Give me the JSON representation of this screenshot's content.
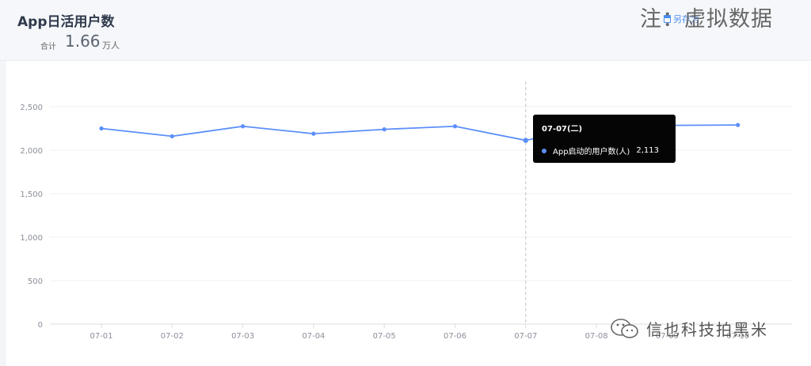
{
  "header": {
    "title": "App日活用户数",
    "total_label": "合计",
    "total_value": "1.66",
    "total_unit": "万人",
    "save_label": "另存为"
  },
  "watermark": {
    "top_text": "注：虚拟数据",
    "bottom_text": "信也科技拍黑米"
  },
  "colors": {
    "series": "#5b8ff9",
    "tooltip_bg": "#050505",
    "accent": "#4a8df0"
  },
  "tooltip": {
    "title": "07-07(二)",
    "series_name": "App启动的用户数(人)",
    "value": "2,113"
  },
  "chart_data": {
    "type": "line",
    "categories": [
      "07-01",
      "07-02",
      "07-03",
      "07-04",
      "07-05",
      "07-06",
      "07-07",
      "07-08",
      "07-09",
      "07-10"
    ],
    "series": [
      {
        "name": "App启动的用户数(人)",
        "values": [
          2250,
          2160,
          2275,
          2190,
          2240,
          2275,
          2113,
          2285,
          2285,
          2290
        ]
      }
    ],
    "y_ticks": [
      "0",
      "500",
      "1,000",
      "1,500",
      "2,000",
      "2,500"
    ],
    "ylim": [
      0,
      2500
    ],
    "grid": true,
    "active_category": "07-07"
  }
}
